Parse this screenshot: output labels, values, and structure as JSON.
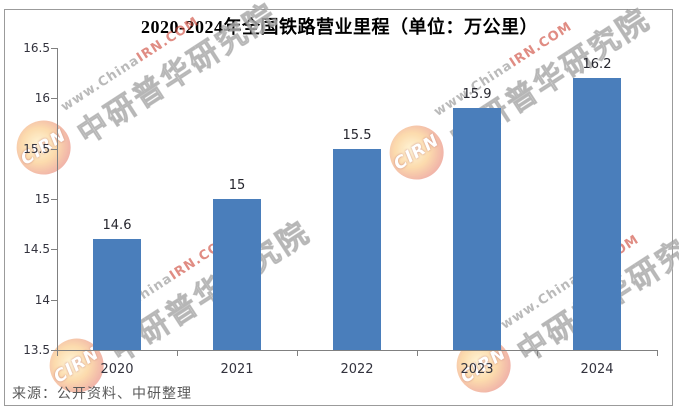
{
  "title": "2020-2024年全国铁路营业里程（单位：万公里）",
  "source_note": "来源：公开资料、中研整理",
  "watermark": {
    "logo_text": "CIRN",
    "url_prefix": "www.China",
    "url_highlight": "IRN.COM",
    "brand": "中研普华研究院"
  },
  "chart_data": {
    "type": "bar",
    "title": "2020-2024年全国铁路营业里程（单位：万公里）",
    "categories": [
      "2020",
      "2021",
      "2022",
      "2023",
      "2024"
    ],
    "values": [
      14.6,
      15,
      15.5,
      15.9,
      16.2
    ],
    "data_labels": [
      "14.6",
      "15",
      "15.5",
      "15.9",
      "16.2"
    ],
    "xlabel": "",
    "ylabel": "",
    "ylim": [
      13.5,
      16.5
    ],
    "ytick_step": 0.5,
    "ytick_labels": [
      "13.5",
      "14",
      "14.5",
      "15",
      "15.5",
      "16",
      "16.5"
    ],
    "bar_color": "#4a7ebb",
    "axis_color": "#808080",
    "grid": false,
    "legend": null
  }
}
